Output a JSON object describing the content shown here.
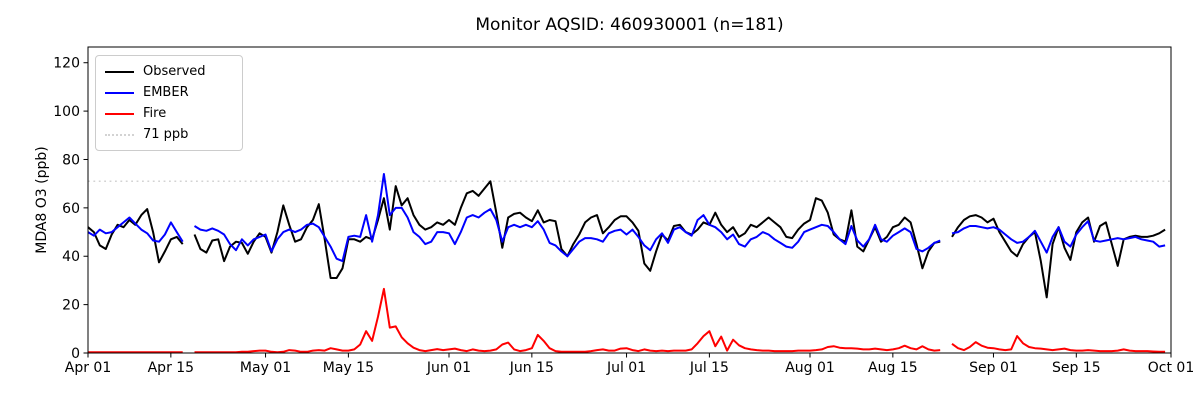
{
  "title": "Monitor AQSID: 460930001 (n=181)",
  "chart_data": {
    "type": "line",
    "title": "Monitor AQSID: 460930001 (n=181)",
    "xlabel": "",
    "ylabel": "MDA8 O3 (ppb)",
    "x_unit": "day",
    "x_start": "Apr 01",
    "x_end": "Oct 01",
    "n_days": 183,
    "x_tick_labels": [
      "Apr 01",
      "Apr 15",
      "May 01",
      "May 15",
      "Jun 01",
      "Jun 15",
      "Jul 01",
      "Jul 15",
      "Aug 01",
      "Aug 15",
      "Sep 01",
      "Sep 15",
      "Oct 01"
    ],
    "x_tick_day_offsets": [
      0,
      14,
      30,
      44,
      61,
      75,
      91,
      105,
      122,
      136,
      153,
      167,
      183
    ],
    "y_ticks": [
      0,
      20,
      40,
      60,
      80,
      100,
      120
    ],
    "ylim": [
      0,
      126.5
    ],
    "grid": false,
    "legend_position": "upper left",
    "threshold": {
      "label": "71 ppb",
      "value": 71,
      "color": "#d3d3d3",
      "line_style": "dotted"
    },
    "legend": [
      {
        "label": "Observed",
        "color": "#000000",
        "line_style": "solid"
      },
      {
        "label": "EMBER",
        "color": "#0000ff",
        "line_style": "solid"
      },
      {
        "label": "Fire",
        "color": "#ff0000",
        "line_style": "solid"
      },
      {
        "label": "71 ppb",
        "color": "#d3d3d3",
        "line_style": "dotted"
      }
    ],
    "missing_dates": [
      "Apr 18",
      "Aug 24"
    ],
    "missing_day_indices": [
      17,
      145
    ],
    "series": [
      {
        "name": "Observed",
        "color": "#000000",
        "values": [
          52,
          50,
          44.5,
          43,
          49,
          53,
          52,
          55,
          53,
          57,
          59.5,
          50,
          37.5,
          42,
          47,
          48,
          45,
          null,
          49,
          43,
          41.5,
          46.5,
          47,
          38,
          44,
          46,
          45.5,
          41,
          46,
          49.5,
          48,
          41.5,
          50,
          61,
          53,
          46,
          47,
          52,
          55,
          61.5,
          47,
          31,
          31,
          35,
          47,
          47,
          46,
          48,
          47,
          55,
          64,
          51,
          69,
          61,
          64,
          57,
          53,
          51,
          52,
          54,
          53,
          55,
          53,
          60,
          66,
          67,
          65,
          68,
          71,
          58,
          43.5,
          56,
          57.5,
          58,
          56,
          54.5,
          59,
          54,
          55,
          54.5,
          43,
          40,
          45,
          49,
          54,
          56,
          57,
          49.5,
          52,
          55,
          56.5,
          56.5,
          54,
          50.5,
          37,
          34,
          42,
          49,
          46.5,
          52.5,
          53,
          50,
          49,
          51,
          54,
          53,
          58,
          53,
          50,
          52,
          48,
          49.5,
          53,
          52,
          54,
          56,
          54,
          52,
          48,
          47.5,
          51,
          53.5,
          55,
          64,
          63,
          58,
          49,
          47,
          46,
          59,
          44,
          42,
          47,
          52,
          46,
          48,
          52,
          53,
          56,
          54,
          45,
          35,
          42,
          45.5,
          46,
          null,
          48,
          52,
          55,
          56.5,
          57,
          56,
          54,
          55.5,
          50,
          46,
          42,
          40,
          45,
          48,
          50,
          38,
          23,
          45,
          52,
          43.5,
          38.5,
          50,
          54,
          56,
          46,
          52.5,
          54,
          45,
          36,
          47,
          48,
          48.5,
          48,
          48,
          48.5,
          49.5,
          51
        ]
      },
      {
        "name": "EMBER",
        "color": "#0000ff",
        "values": [
          50,
          48.5,
          51,
          49.5,
          50,
          52,
          54,
          56,
          53.5,
          51,
          49.5,
          46.5,
          46,
          49,
          54,
          50,
          46,
          null,
          52.5,
          51,
          50.5,
          51.5,
          50.5,
          49,
          45,
          42.5,
          47,
          44.5,
          47,
          48,
          49,
          42,
          47,
          50,
          51,
          50,
          51,
          53,
          53.5,
          52,
          48,
          44,
          39,
          38,
          48,
          48.5,
          48,
          57,
          46,
          57,
          74,
          57,
          60,
          60,
          56,
          50,
          48,
          45,
          46,
          50,
          50,
          49.5,
          45,
          50,
          56,
          57,
          56,
          58,
          59.5,
          55,
          46,
          52,
          53,
          52,
          53,
          52,
          54.5,
          51,
          45.5,
          44.5,
          42,
          40,
          43,
          46,
          47.5,
          47.5,
          47,
          46,
          49.5,
          50.5,
          51,
          49,
          51,
          48,
          44.5,
          42.5,
          47,
          49.5,
          45.5,
          51,
          52,
          50,
          48.5,
          55,
          57,
          53,
          52,
          50,
          47,
          49,
          45,
          44,
          47,
          48,
          50,
          49,
          47,
          45.5,
          44,
          43.5,
          46,
          50,
          51,
          52,
          53,
          52.5,
          50,
          47,
          45,
          52.5,
          46.5,
          44,
          47,
          53,
          47,
          46,
          48.5,
          50,
          51.5,
          50,
          43,
          42,
          43.5,
          45.5,
          46.5,
          null,
          49.5,
          50,
          51.5,
          52.5,
          52.5,
          52,
          51.5,
          52,
          51,
          49,
          47,
          45.5,
          46,
          48,
          50.5,
          46,
          41.5,
          48,
          52,
          46,
          44,
          49,
          52,
          54.5,
          46.5,
          46,
          46.5,
          47,
          47.5,
          47,
          47.5,
          48,
          47,
          46.5,
          46,
          44,
          44.5
        ]
      },
      {
        "name": "Fire",
        "color": "#ff0000",
        "values": [
          0.3,
          0.3,
          0.3,
          0.3,
          0.3,
          0.3,
          0.3,
          0.3,
          0.3,
          0.3,
          0.3,
          0.3,
          0.3,
          0.3,
          0.3,
          0.3,
          0.3,
          null,
          0.3,
          0.3,
          0.3,
          0.3,
          0.3,
          0.3,
          0.3,
          0.3,
          0.5,
          0.5,
          0.8,
          1,
          1,
          0.5,
          0.3,
          0.5,
          1.2,
          1,
          0.5,
          0.5,
          1,
          1.2,
          1,
          2,
          1.5,
          1,
          1,
          1.5,
          3.5,
          9,
          5,
          15,
          26.5,
          10.5,
          11,
          6.5,
          4,
          2.2,
          1.2,
          0.8,
          1.2,
          1.6,
          1.2,
          1.5,
          1.8,
          1.2,
          0.8,
          1.5,
          1,
          0.8,
          1,
          1.5,
          3.5,
          4.3,
          1.5,
          0.8,
          1.2,
          2,
          7.5,
          5,
          2,
          0.8,
          0.5,
          0.5,
          0.5,
          0.5,
          0.5,
          0.8,
          1.2,
          1.5,
          1,
          1,
          1.8,
          2,
          1.2,
          0.8,
          1.5,
          1,
          0.8,
          1,
          0.8,
          1,
          1,
          1,
          1.5,
          4,
          7,
          9,
          2.8,
          6.8,
          1,
          5.5,
          3.2,
          2,
          1.5,
          1.2,
          1,
          1,
          0.8,
          0.8,
          0.8,
          0.8,
          1,
          1,
          1,
          1.2,
          1.5,
          2.5,
          2.8,
          2.2,
          2,
          2,
          1.8,
          1.5,
          1.5,
          1.8,
          1.5,
          1.2,
          1.5,
          2,
          3,
          2,
          1.5,
          2.8,
          1.5,
          1,
          1.2,
          null,
          3.8,
          2,
          1.2,
          2.5,
          4.5,
          3,
          2.2,
          2,
          1.5,
          1.2,
          1.5,
          7,
          4,
          2.5,
          2,
          1.8,
          1.5,
          1.2,
          1.5,
          1.8,
          1.2,
          1,
          1,
          1.2,
          1,
          0.8,
          0.8,
          0.8,
          1,
          1.5,
          1,
          0.8,
          0.8,
          0.8,
          0.6,
          0.5,
          0.5
        ]
      }
    ]
  },
  "layout_colors": {
    "background": "#ffffff",
    "axes_frame": "#000000",
    "legend_border": "#cccccc"
  }
}
